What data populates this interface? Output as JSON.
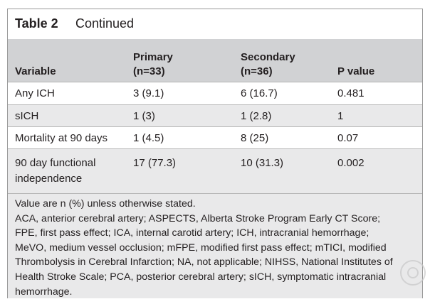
{
  "title": {
    "number": "Table 2",
    "continued": "Continued"
  },
  "headers": {
    "variable": "Variable",
    "primary_1": "Primary",
    "primary_2": "(n=33)",
    "secondary_1": "Secondary",
    "secondary_2": "(n=36)",
    "pvalue": "P value"
  },
  "rows": [
    {
      "variable": "Any ICH",
      "primary": "3 (9.1)",
      "secondary": "6 (16.7)",
      "pvalue": "0.481"
    },
    {
      "variable": "sICH",
      "primary": "1 (3)",
      "secondary": "1 (2.8)",
      "pvalue": "1"
    },
    {
      "variable": "Mortality at 90 days",
      "primary": "1 (4.5)",
      "secondary": "8 (25)",
      "pvalue": "0.07"
    },
    {
      "variable_1": "90 day functional",
      "variable_2": "independence",
      "primary": "17 (77.3)",
      "secondary": "10 (31.3)",
      "pvalue": "0.002"
    }
  ],
  "footnotes": [
    "Value are n (%) unless otherwise stated.",
    "ACA, anterior cerebral artery; ASPECTS, Alberta Stroke Program Early CT Score;",
    "FPE, first pass effect; ICA, internal carotid artery; ICH, intracranial hemorrhage;",
    "MeVO, medium vessel occlusion; mFPE, modified first pass effect; mTICI, modified",
    "Thrombolysis in Cerebral Infarction; NA, not applicable; NIHSS, National Institutes of",
    "Health Stroke Scale; PCA, posterior cerebral artery; sICH, symptomatic intracranial",
    "hemorrhage."
  ]
}
